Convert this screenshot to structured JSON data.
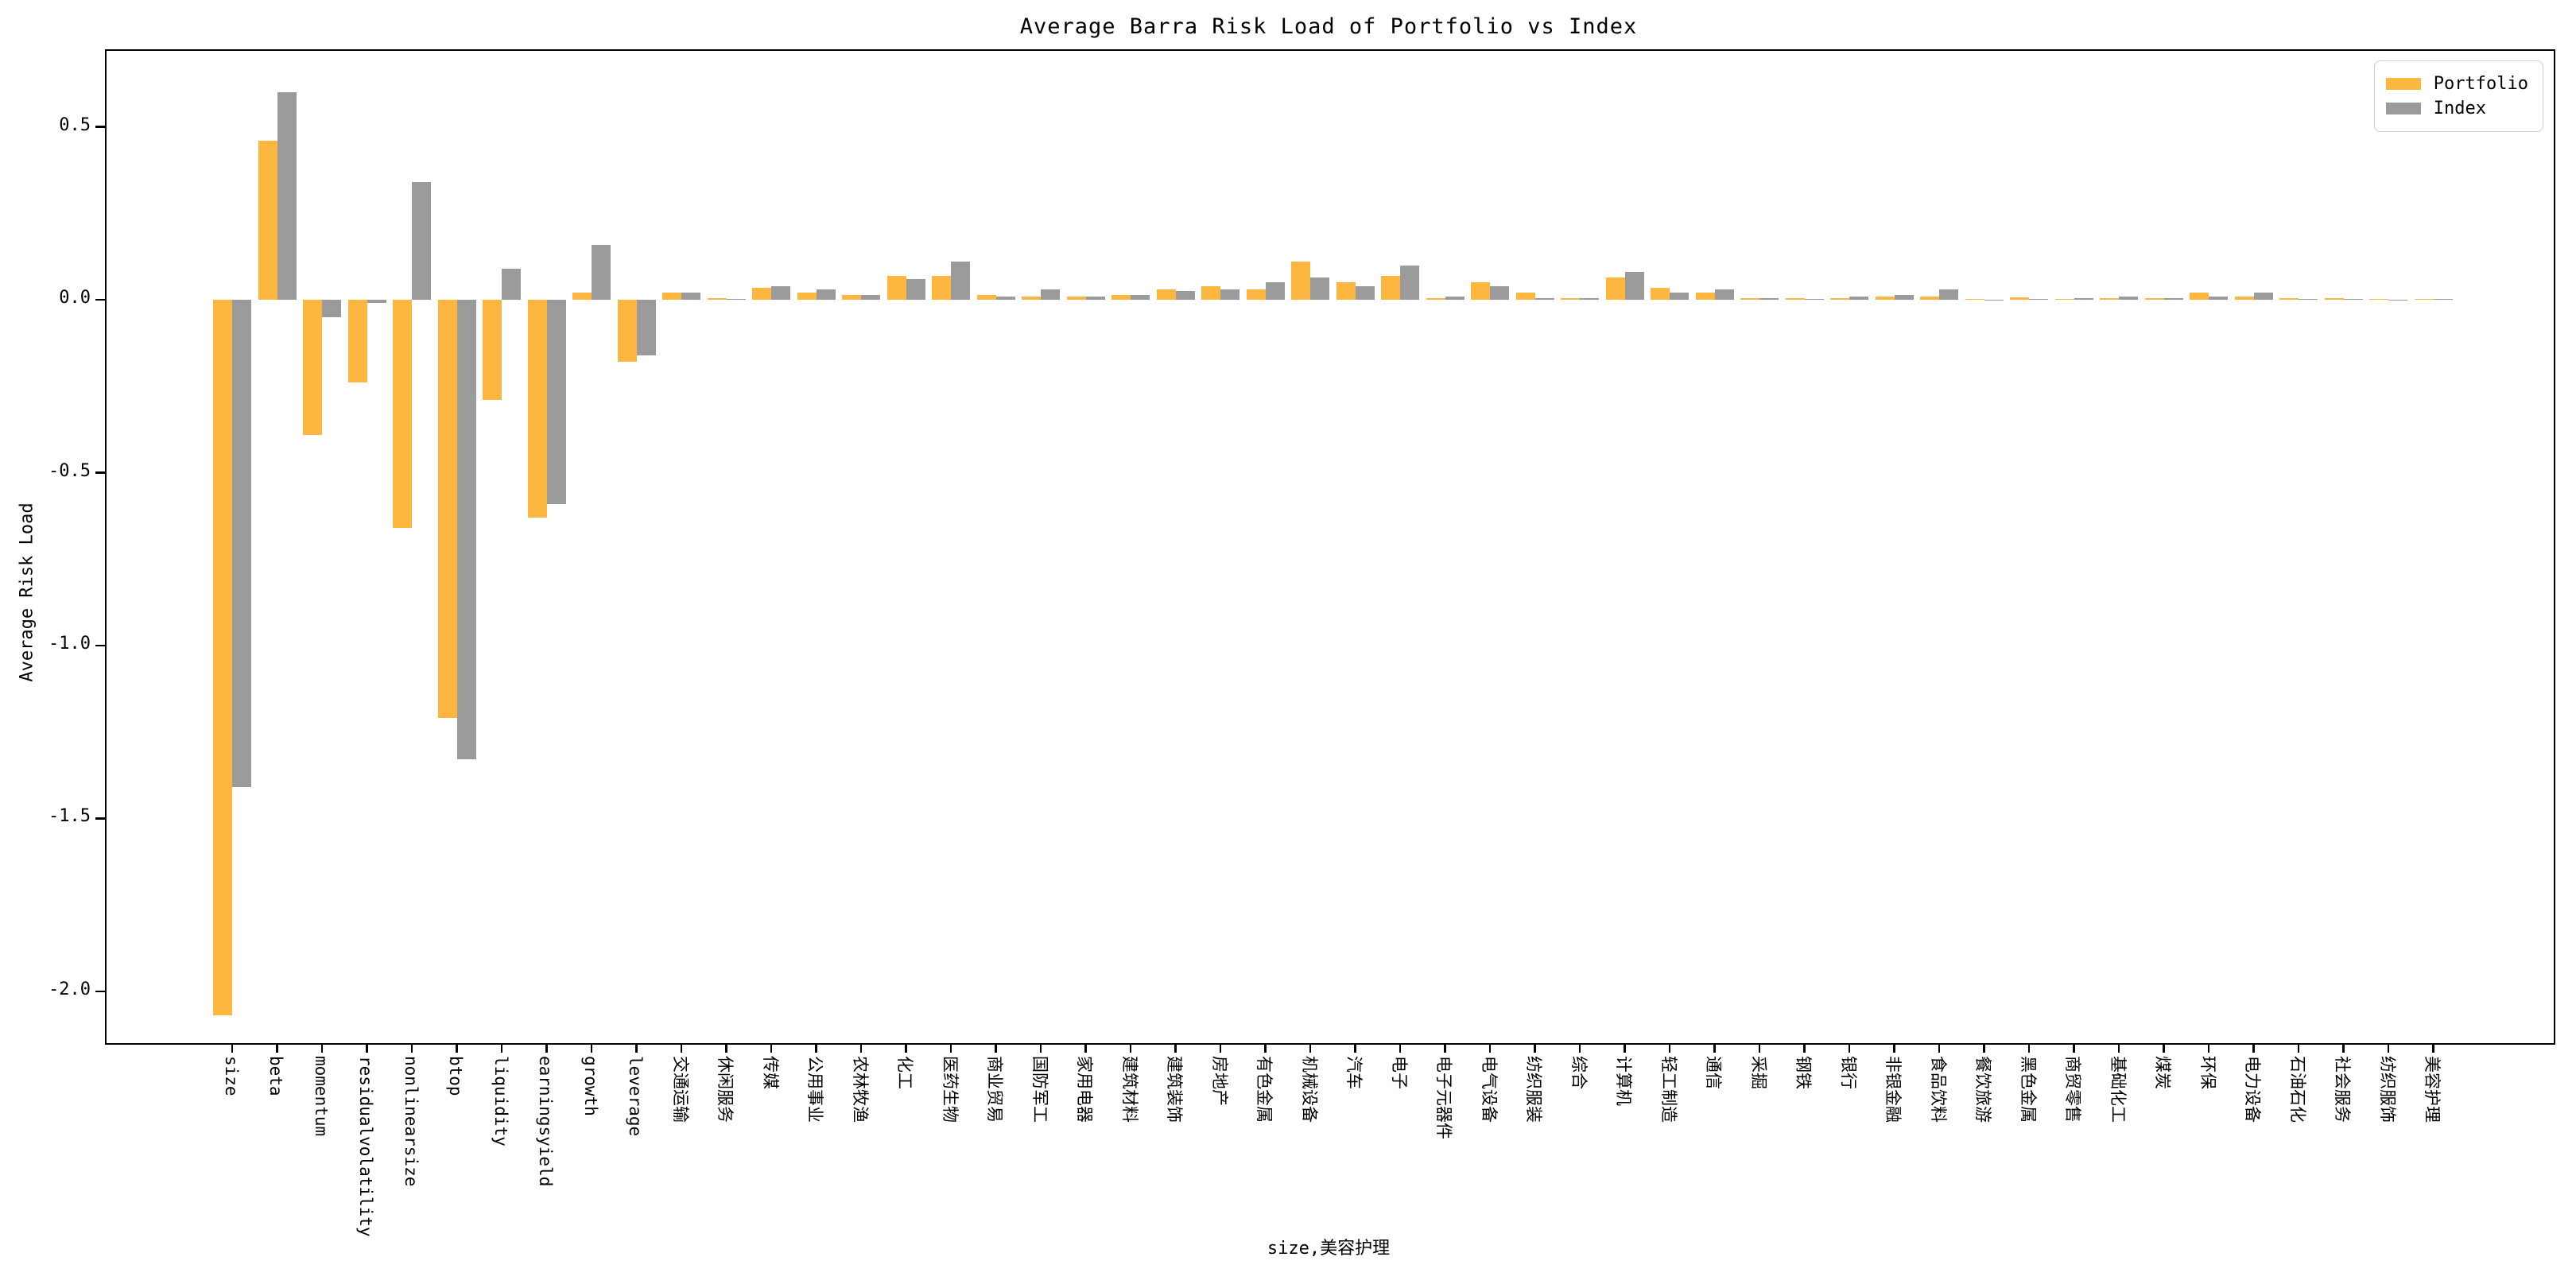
{
  "chart_data": {
    "type": "bar",
    "title": "Average Barra Risk Load of Portfolio vs Index",
    "xlabel": "size,美容护理",
    "ylabel": "Average Risk Load",
    "ylim": [
      -2.15,
      0.72
    ],
    "yticks": [
      0.5,
      0.0,
      -0.5,
      -1.0,
      -1.5,
      -2.0
    ],
    "grid": false,
    "legend_position": "upper right",
    "categories": [
      "size",
      "beta",
      "momentum",
      "residualvolatility",
      "nonlinearsize",
      "btop",
      "liquidity",
      "earningsyield",
      "growth",
      "leverage",
      "交通运输",
      "休闲服务",
      "传媒",
      "公用事业",
      "农林牧渔",
      "化工",
      "医药生物",
      "商业贸易",
      "国防军工",
      "家用电器",
      "建筑材料",
      "建筑装饰",
      "房地产",
      "有色金属",
      "机械设备",
      "汽车",
      "电子",
      "电子元器件",
      "电气设备",
      "纺织服装",
      "综合",
      "计算机",
      "轻工制造",
      "通信",
      "采掘",
      "钢铁",
      "银行",
      "非银金融",
      "食品饮料",
      "餐饮旅游",
      "黑色金属",
      "商贸零售",
      "基础化工",
      "煤炭",
      "环保",
      "电力设备",
      "石油石化",
      "社会服务",
      "纺织服饰",
      "美容护理"
    ],
    "series": [
      {
        "name": "Portfolio",
        "color": "#FDB640",
        "values": [
          -2.07,
          0.46,
          -0.39,
          -0.24,
          -0.66,
          -1.21,
          -0.29,
          -0.63,
          0.02,
          -0.18,
          0.02,
          0.005,
          0.035,
          0.02,
          0.015,
          0.07,
          0.07,
          0.015,
          0.01,
          0.01,
          0.015,
          0.03,
          0.04,
          0.03,
          0.11,
          0.05,
          0.07,
          0.005,
          0.05,
          0.02,
          0.005,
          0.065,
          0.035,
          0.02,
          0.005,
          0.005,
          0.005,
          0.01,
          0.01,
          0.002,
          0.008,
          0.002,
          0.005,
          0.005,
          0.02,
          0.01,
          0.005,
          0.005,
          0.003,
          0.003
        ]
      },
      {
        "name": "Index",
        "color": "#9B9B9B",
        "values": [
          -1.41,
          0.6,
          -0.05,
          -0.01,
          0.34,
          -1.33,
          0.09,
          -0.59,
          0.16,
          -0.16,
          0.02,
          0.002,
          0.04,
          0.03,
          0.015,
          0.06,
          0.11,
          0.01,
          0.03,
          0.01,
          0.015,
          0.025,
          0.03,
          0.05,
          0.065,
          0.04,
          0.1,
          0.01,
          0.04,
          0.005,
          0.005,
          0.08,
          0.02,
          0.03,
          0.005,
          0.002,
          0.01,
          0.015,
          0.03,
          0.001,
          0.002,
          0.005,
          0.01,
          0.005,
          0.01,
          0.02,
          0.002,
          0.002,
          0.001,
          0.002
        ]
      }
    ]
  },
  "legend": {
    "items": [
      {
        "label": "Portfolio",
        "color": "#FDB640"
      },
      {
        "label": "Index",
        "color": "#9B9B9B"
      }
    ]
  }
}
